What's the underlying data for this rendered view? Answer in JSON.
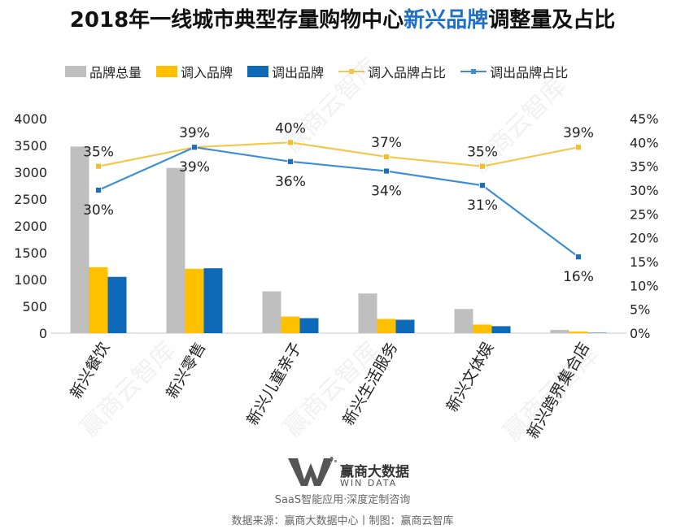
{
  "title_prefix": "2018年一线城市典型存量购物中心",
  "title_highlight": "新兴品牌",
  "title_suffix": "调整量及占比",
  "colors": {
    "total": "#bfbfbf",
    "in": "#ffc000",
    "out": "#0e6ab8",
    "in_ratio": "#f2c84b",
    "out_ratio": "#3c8ed6"
  },
  "chart_data": {
    "type": "bar",
    "categories": [
      "新兴餐饮",
      "新兴零售",
      "新兴儿童亲子",
      "新兴生活服务",
      "新兴文体娱",
      "新兴跨界集合店"
    ],
    "series": [
      {
        "name": "品牌总量",
        "type": "bar",
        "axis": "left",
        "values": [
          3480,
          3080,
          780,
          740,
          450,
          60
        ]
      },
      {
        "name": "调入品牌",
        "type": "bar",
        "axis": "left",
        "values": [
          1230,
          1200,
          310,
          265,
          160,
          30
        ]
      },
      {
        "name": "调出品牌",
        "type": "bar",
        "axis": "left",
        "values": [
          1050,
          1210,
          280,
          250,
          130,
          8
        ]
      },
      {
        "name": "调入品牌占比",
        "type": "line",
        "axis": "right",
        "values": [
          35,
          39,
          40,
          37,
          35,
          39
        ],
        "labels": [
          "35%",
          "39%",
          "40%",
          "37%",
          "35%",
          "39%"
        ]
      },
      {
        "name": "调出品牌占比",
        "type": "line",
        "axis": "right",
        "values": [
          30,
          39,
          36,
          34,
          31,
          16
        ],
        "labels": [
          "30%",
          "39%",
          "36%",
          "34%",
          "31%",
          "16%"
        ]
      }
    ],
    "ylim": [
      0,
      4000
    ],
    "yticks": [
      "0",
      "500",
      "1000",
      "1500",
      "2000",
      "2500",
      "3000",
      "3500",
      "4000"
    ],
    "y2lim": [
      0,
      45
    ],
    "y2ticks": [
      "0%",
      "5%",
      "10%",
      "15%",
      "20%",
      "25%",
      "30%",
      "35%",
      "40%",
      "45%"
    ],
    "legend_position": "top",
    "grid": false
  },
  "watermark": "赢商云智库",
  "logo": {
    "name": "赢商大数据",
    "sub": "WIN DATA"
  },
  "tagline": "SaaS智能应用·深度定制咨询",
  "source": "数据来源：赢商大数据中心丨制图：赢商云智库"
}
